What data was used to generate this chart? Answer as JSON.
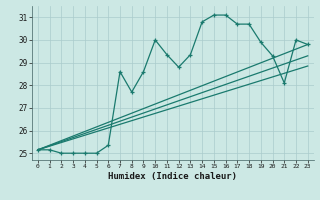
{
  "xlabel": "Humidex (Indice chaleur)",
  "bg_color": "#cce8e4",
  "grid_color": "#aacccc",
  "line_color": "#1a7a6e",
  "xlim": [
    -0.5,
    23.5
  ],
  "ylim": [
    24.7,
    31.5
  ],
  "xticks": [
    0,
    1,
    2,
    3,
    4,
    5,
    6,
    7,
    8,
    9,
    10,
    11,
    12,
    13,
    14,
    15,
    16,
    17,
    18,
    19,
    20,
    21,
    22,
    23
  ],
  "yticks": [
    25,
    26,
    27,
    28,
    29,
    30,
    31
  ],
  "line1_x": [
    0,
    1,
    2,
    3,
    4,
    5,
    6,
    7,
    8,
    9,
    10,
    11,
    12,
    13,
    14,
    15,
    16,
    17,
    18,
    19,
    20,
    21,
    22,
    23
  ],
  "line1_y": [
    25.15,
    25.15,
    25.0,
    25.0,
    25.0,
    25.0,
    25.35,
    28.6,
    27.7,
    28.6,
    30.0,
    29.35,
    28.8,
    29.35,
    30.8,
    31.1,
    31.1,
    30.7,
    30.7,
    29.9,
    29.3,
    28.1,
    30.0,
    29.8
  ],
  "line2_x": [
    0,
    23
  ],
  "line2_y": [
    25.15,
    29.8
  ],
  "line3_x": [
    0,
    23
  ],
  "line3_y": [
    25.15,
    29.3
  ],
  "line4_x": [
    0,
    23
  ],
  "line4_y": [
    25.15,
    28.85
  ]
}
